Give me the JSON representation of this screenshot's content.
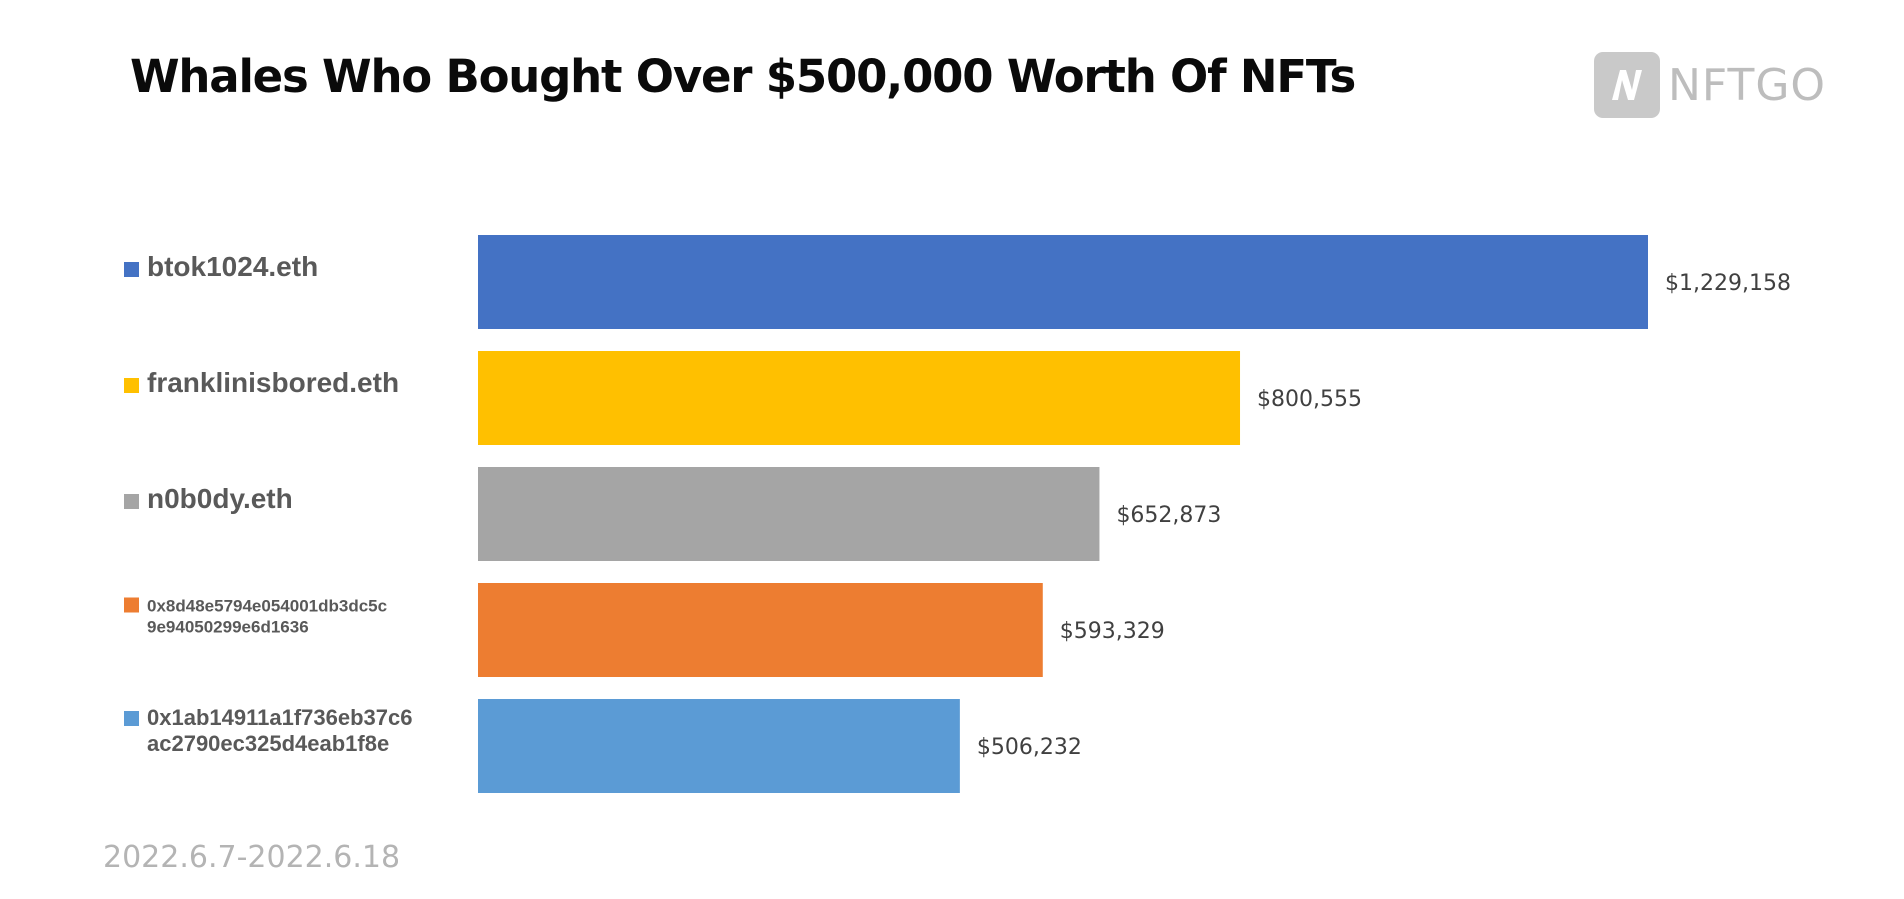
{
  "title": "Whales Who Bought Over $500,000 Worth Of NFTs",
  "logo": {
    "text": "NFTGO",
    "mark_letter": "N",
    "color": "#c9c9c9"
  },
  "date_range": "2022.6.7-2022.6.18",
  "chart_data": {
    "type": "bar",
    "orientation": "horizontal",
    "title": "Whales Who Bought Over $500,000 Worth Of NFTs",
    "categories": [
      "btok1024.eth",
      "franklinisbored.eth",
      "n0b0dy.eth",
      "0x8d48e5794e054001db3dc5c9e94050299e6d1636",
      "0x1ab14911a1f736eb37c6ac2790ec325d4eab1f8e"
    ],
    "category_lines": [
      [
        "btok1024.eth"
      ],
      [
        "franklinisbored.eth"
      ],
      [
        "n0b0dy.eth"
      ],
      [
        "0x8d48e5794e054001db3dc5c",
        "9e94050299e6d1636"
      ],
      [
        "0x1ab14911a1f736eb37c6",
        "ac2790ec325d4eab1f8e"
      ]
    ],
    "values": [
      1229158,
      800555,
      652873,
      593329,
      506232
    ],
    "value_labels": [
      "$1,229,158",
      "$800,555",
      "$652,873",
      "$593,329",
      "$506,232"
    ],
    "colors": [
      "#4472c4",
      "#ffc000",
      "#a5a5a5",
      "#ed7d31",
      "#5b9bd5"
    ],
    "xlim": [
      0,
      1229158
    ],
    "grid": false,
    "legend": "left"
  }
}
